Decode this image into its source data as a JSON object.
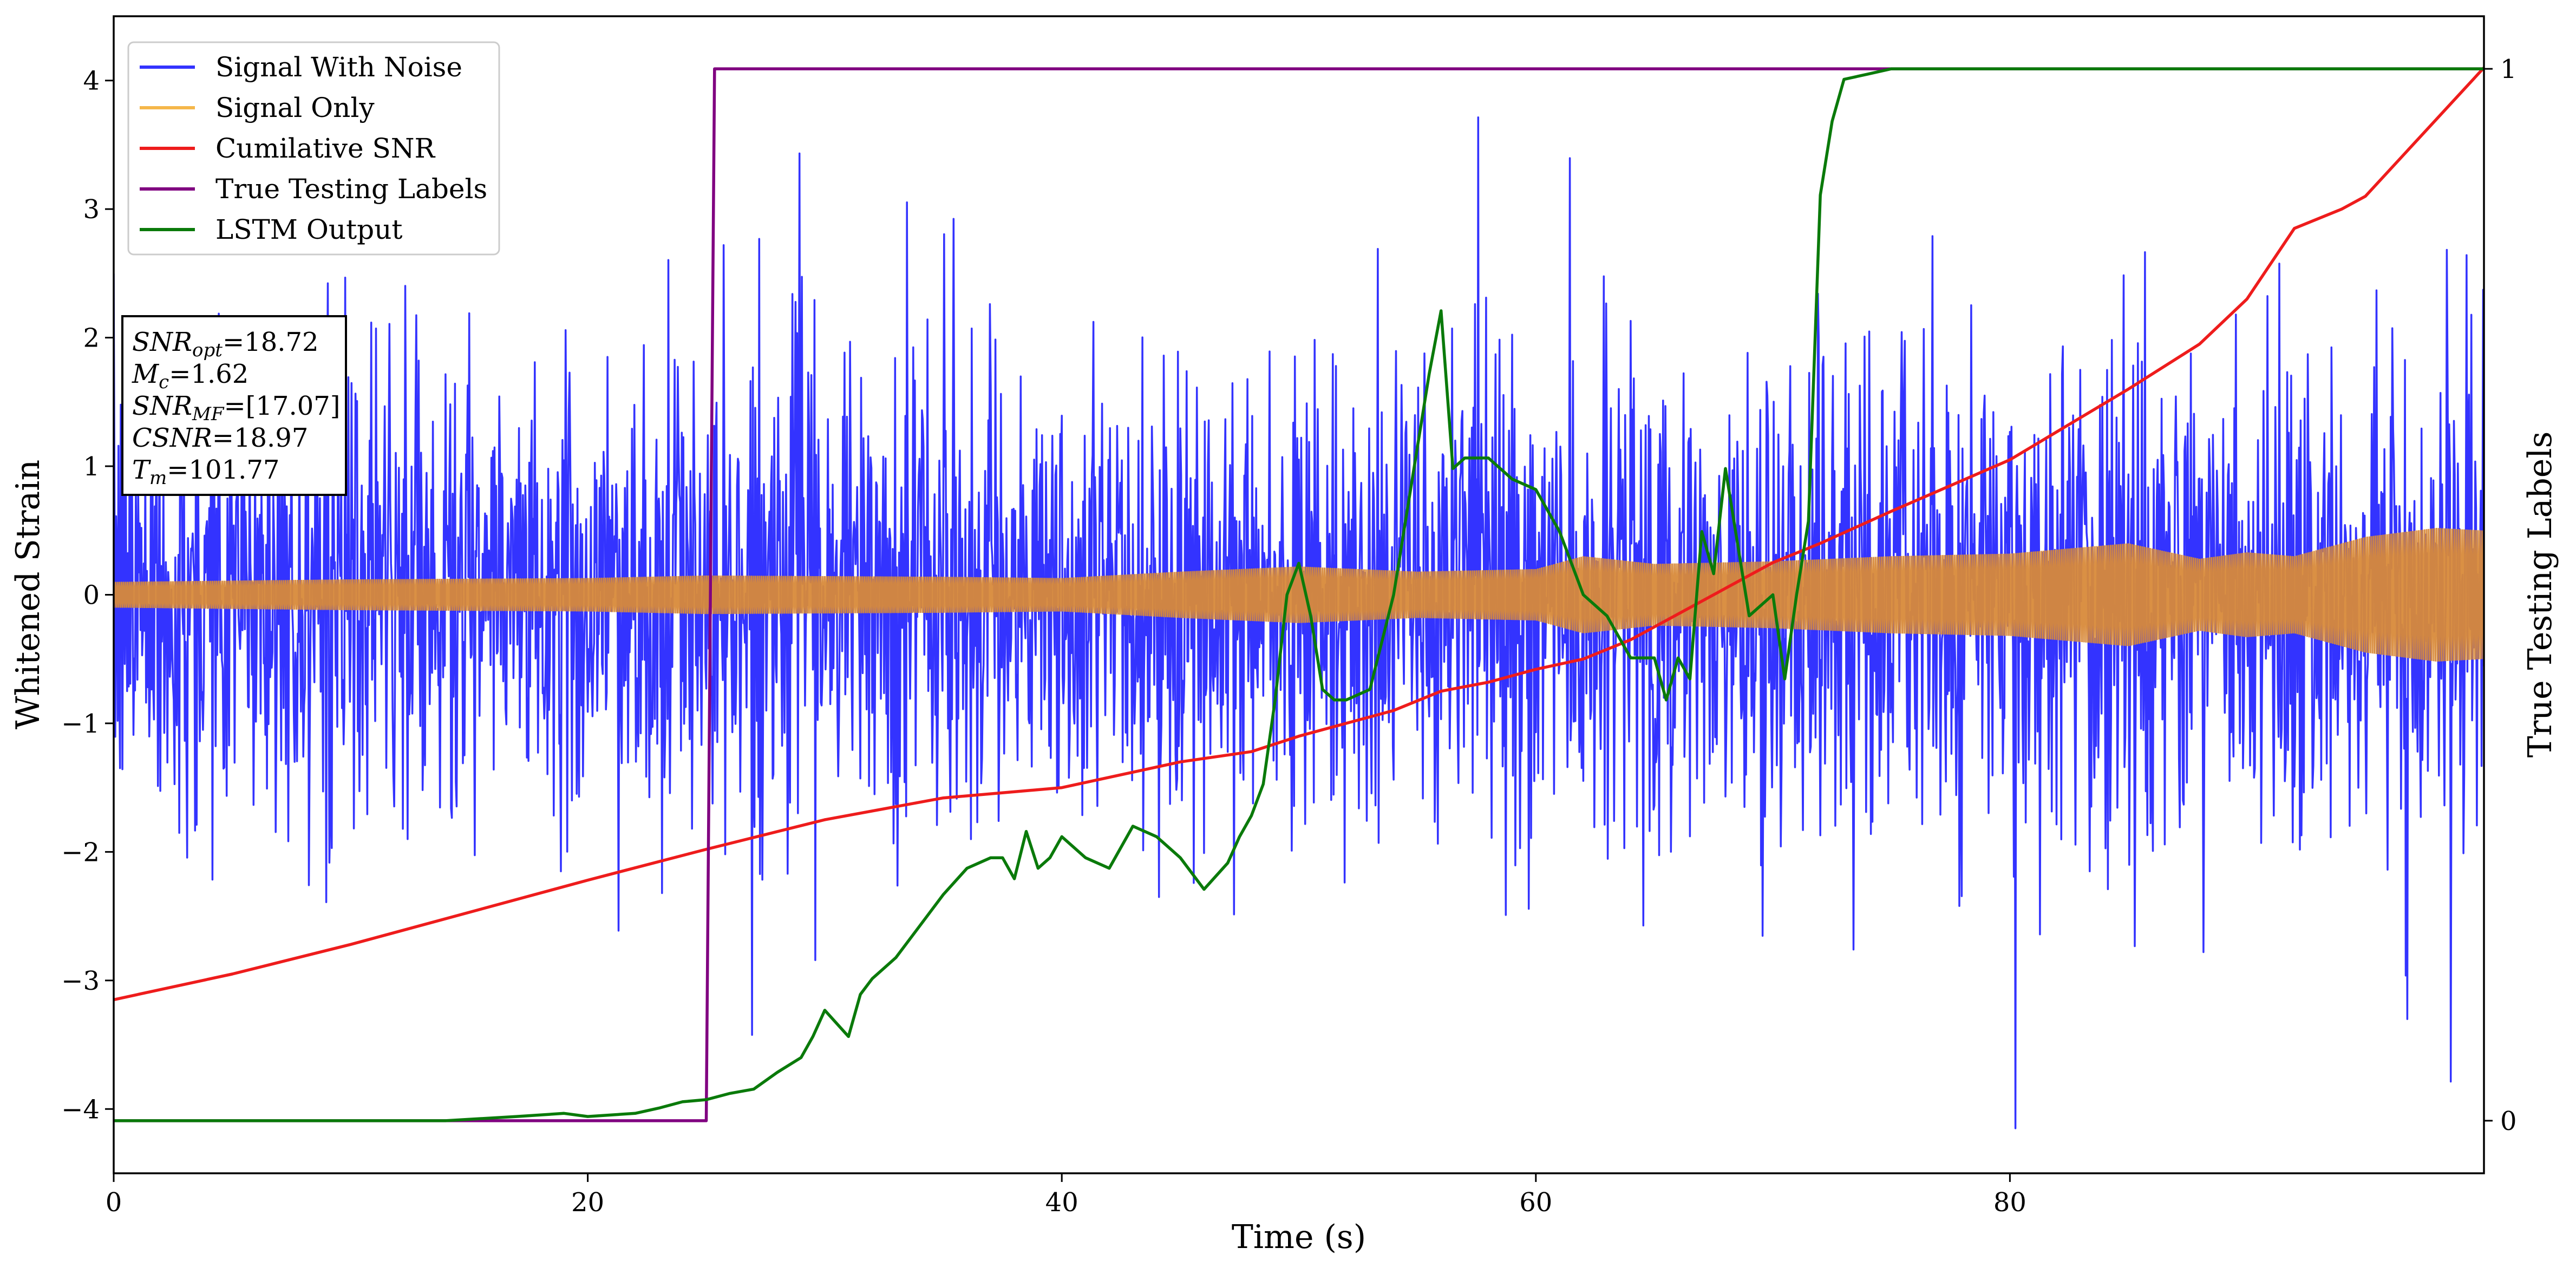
{
  "chart_data": {
    "type": "line",
    "xlabel": "Time (s)",
    "ylabel": "Whitened Strain",
    "y2label": "True Testing Labels",
    "xlim": [
      0,
      100
    ],
    "ylim": [
      -4.5,
      4.5
    ],
    "y2lim": [
      -0.05,
      1.05
    ],
    "x_ticks": [
      "0",
      "20",
      "40",
      "60",
      "80"
    ],
    "y_ticks": [
      "−4",
      "−3",
      "−2",
      "−1",
      "0",
      "1",
      "2",
      "3",
      "4"
    ],
    "y2_ticks": [
      "0",
      "1"
    ],
    "legend_position": "top-left",
    "legend": [
      {
        "label": "Signal With Noise",
        "color": "#3333ff"
      },
      {
        "label": "Signal Only",
        "color": "#f5b74a"
      },
      {
        "label": "Cumilative SNR",
        "color": "#ee1c1c"
      },
      {
        "label": "True Testing Labels",
        "color": "#800080"
      },
      {
        "label": "LSTM Output",
        "color": "#0a7a0a"
      }
    ],
    "annotations": [
      {
        "name": "SNR",
        "sub": "opt",
        "value": "=18.72"
      },
      {
        "name": "M",
        "sub": "c",
        "value": "=1.62"
      },
      {
        "name": "SNR",
        "sub": "MF",
        "value": "=[17.07]"
      },
      {
        "name": "CSNR",
        "sub": "",
        "value": "=18.97"
      },
      {
        "name": "T",
        "sub": "m",
        "value": "=101.77"
      }
    ],
    "signal_envelope": {
      "x": [
        0,
        10,
        20,
        25,
        35,
        40,
        45,
        50,
        55,
        60,
        62,
        65,
        70,
        75,
        80,
        85,
        88,
        90,
        92,
        95,
        98,
        100
      ],
      "amp": [
        0.1,
        0.12,
        0.13,
        0.15,
        0.14,
        0.13,
        0.18,
        0.22,
        0.18,
        0.2,
        0.3,
        0.24,
        0.26,
        0.3,
        0.32,
        0.4,
        0.28,
        0.33,
        0.3,
        0.45,
        0.52,
        0.5
      ]
    },
    "series": [
      {
        "name": "Cumilative SNR",
        "axis": "left",
        "x": [
          0,
          5,
          10,
          15,
          20,
          25,
          30,
          35,
          40,
          45,
          48,
          50,
          52,
          54,
          56,
          58,
          60,
          62,
          64,
          66,
          68,
          70,
          72,
          75,
          80,
          85,
          88,
          90,
          92,
          94,
          95,
          97,
          100
        ],
        "y": [
          -3.15,
          -2.95,
          -2.72,
          -2.47,
          -2.22,
          -1.98,
          -1.75,
          -1.58,
          -1.5,
          -1.3,
          -1.22,
          -1.1,
          -1.0,
          -0.9,
          -0.75,
          -0.68,
          -0.58,
          -0.5,
          -0.35,
          -0.15,
          0.05,
          0.25,
          0.4,
          0.65,
          1.05,
          1.6,
          1.95,
          2.3,
          2.85,
          3.0,
          3.1,
          3.5,
          4.1
        ]
      },
      {
        "name": "True Testing Labels",
        "axis": "right",
        "x": [
          0,
          25.0,
          25.35,
          100
        ],
        "y": [
          0,
          0,
          1,
          1
        ]
      },
      {
        "name": "LSTM Output",
        "axis": "right",
        "x": [
          0,
          14,
          17,
          19,
          20,
          22,
          23,
          24,
          25,
          26,
          27,
          28,
          29,
          29.5,
          30,
          31,
          31.5,
          32,
          33,
          34,
          35,
          36,
          37,
          37.5,
          38,
          38.5,
          39,
          39.5,
          40,
          41,
          42,
          43,
          44,
          45,
          46,
          47,
          47.5,
          48,
          48.5,
          49,
          49.5,
          50,
          50.5,
          51,
          51.5,
          52,
          53,
          54,
          55,
          55.5,
          56,
          56.5,
          57,
          58,
          59,
          60,
          61,
          62,
          63,
          64,
          65,
          65.5,
          66,
          66.5,
          67,
          67.5,
          68,
          68.5,
          69,
          70,
          70.5,
          71,
          71.5,
          72,
          72.5,
          73,
          74,
          75,
          76,
          78,
          80,
          85,
          90,
          95,
          100
        ],
        "y": [
          0,
          0,
          0.004,
          0.007,
          0.004,
          0.007,
          0.012,
          0.018,
          0.02,
          0.026,
          0.03,
          0.046,
          0.06,
          0.08,
          0.105,
          0.08,
          0.12,
          0.135,
          0.155,
          0.185,
          0.215,
          0.24,
          0.25,
          0.25,
          0.23,
          0.275,
          0.24,
          0.25,
          0.27,
          0.25,
          0.24,
          0.28,
          0.27,
          0.25,
          0.22,
          0.245,
          0.27,
          0.29,
          0.32,
          0.4,
          0.5,
          0.53,
          0.48,
          0.41,
          0.4,
          0.4,
          0.41,
          0.5,
          0.64,
          0.71,
          0.77,
          0.62,
          0.63,
          0.63,
          0.61,
          0.6,
          0.56,
          0.5,
          0.48,
          0.44,
          0.44,
          0.4,
          0.44,
          0.42,
          0.56,
          0.52,
          0.62,
          0.55,
          0.48,
          0.5,
          0.42,
          0.5,
          0.57,
          0.88,
          0.95,
          0.99,
          0.995,
          1.0,
          1.0,
          1.0,
          1.0,
          1.0,
          1.0,
          1.0,
          1.0
        ]
      }
    ]
  }
}
